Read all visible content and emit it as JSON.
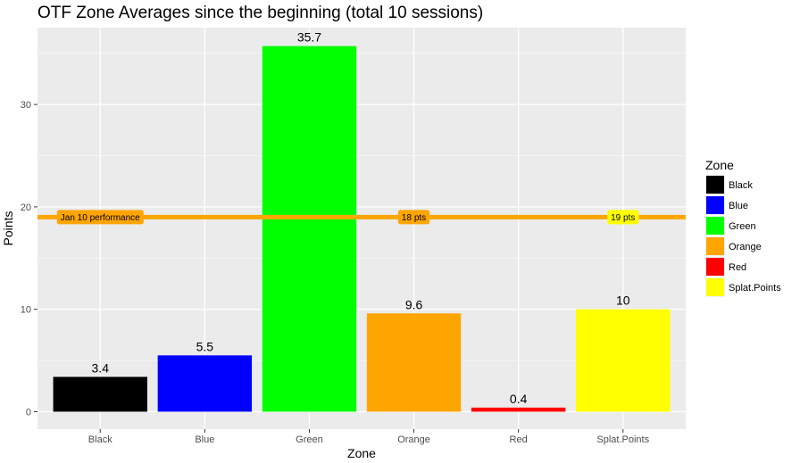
{
  "chart_data": {
    "type": "bar",
    "title": "OTF Zone Averages since the beginning (total 10 sessions)",
    "xlabel": "Zone",
    "ylabel": "Points",
    "ylim": [
      -1.7,
      37.5
    ],
    "yticks": [
      0,
      10,
      20,
      30
    ],
    "grid": true,
    "categories": [
      "Black",
      "Blue",
      "Green",
      "Orange",
      "Red",
      "Splat.Points"
    ],
    "values": [
      3.4,
      5.5,
      35.7,
      9.6,
      0.4,
      10
    ],
    "value_labels": [
      "3.4",
      "5.5",
      "35.7",
      "9.6",
      "0.4",
      "10"
    ],
    "colors": [
      "#000000",
      "#0000ff",
      "#00ff00",
      "#ffa500",
      "#ff0000",
      "#ffff00"
    ],
    "hline": {
      "y": 19,
      "color": "#ffa500"
    },
    "annotations": [
      {
        "text": "Jan 10 performance",
        "x": "Black",
        "y": 19,
        "fill": "#ffa500"
      },
      {
        "text": "18 pts",
        "x": "Orange",
        "y": 19,
        "fill": "#ffa500"
      },
      {
        "text": "19 pts",
        "x": "Splat.Points",
        "y": 19,
        "fill": "#ffff00"
      }
    ],
    "legend": {
      "title": "Zone",
      "position": "right",
      "entries": [
        "Black",
        "Blue",
        "Green",
        "Orange",
        "Red",
        "Splat.Points"
      ]
    }
  }
}
